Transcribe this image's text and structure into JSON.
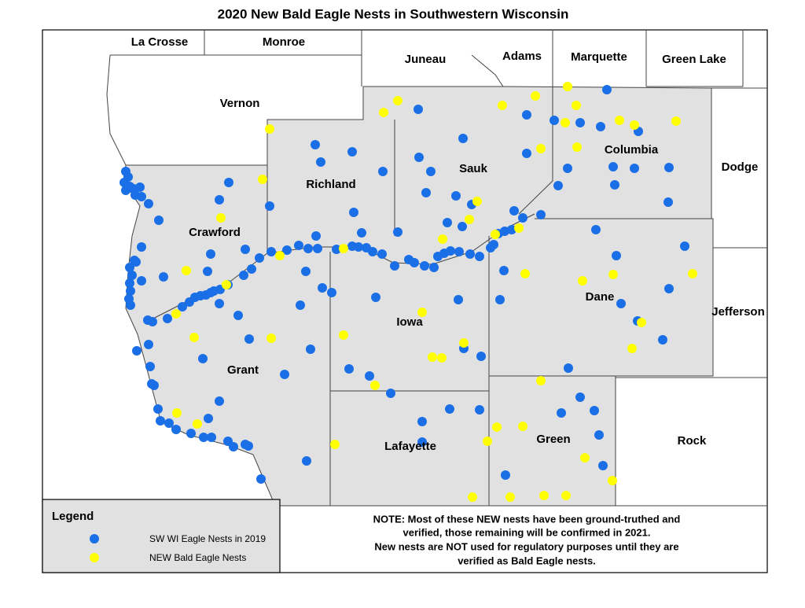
{
  "title": "2020 New Bald Eagle Nests in Southwestern Wisconsin",
  "counties": [
    "La Crosse",
    "Monroe",
    "Juneau",
    "Adams",
    "Marquette",
    "Green Lake",
    "Vernon",
    "Richland",
    "Sauk",
    "Columbia",
    "Dodge",
    "Crawford",
    "Dane",
    "Jefferson",
    "Iowa",
    "Grant",
    "Green",
    "Rock",
    "Lafayette"
  ],
  "legend": {
    "title": "Legend",
    "items": [
      {
        "label": "SW WI Eagle Nests in 2019",
        "color": "#1a6fe6"
      },
      {
        "label": "NEW Bald Eagle Nests",
        "color": "#ffff00"
      }
    ]
  },
  "note": [
    "NOTE: Most of these NEW nests have been ground-truthed and",
    "verified, those remaining will be confirmed in 2021.",
    "New nests are NOT used for regulatory purposes until they are",
    "verified as Bald Eagle nests."
  ]
}
